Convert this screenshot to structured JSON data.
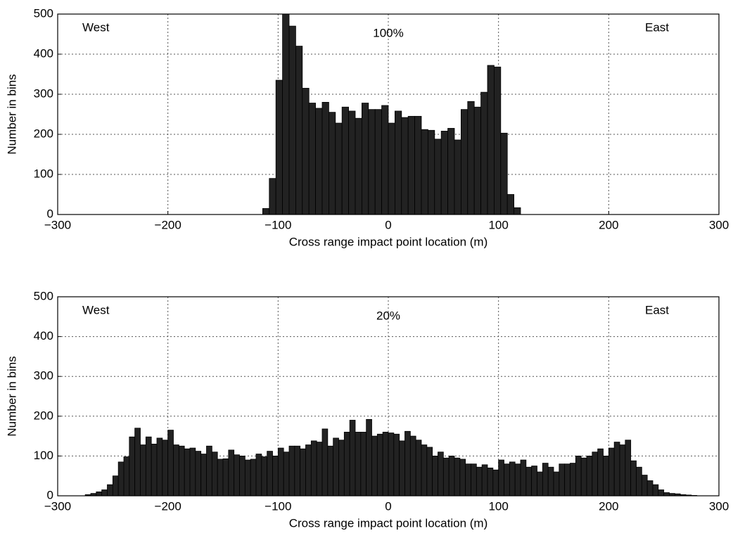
{
  "chart_data": [
    {
      "type": "histogram",
      "ylabel": "Number in bins",
      "xlabel": "Cross range impact point location (m)",
      "annotations": [
        "West",
        "100%",
        "East"
      ],
      "color": "#222222",
      "grid": true,
      "xlim": [
        -300,
        300
      ],
      "ylim": [
        0,
        500
      ],
      "xticks": [
        {
          "value": -300,
          "label": "−300"
        },
        {
          "value": -200,
          "label": "−200"
        },
        {
          "value": -100,
          "label": "−100"
        },
        0,
        100,
        200,
        300
      ],
      "yticks": [
        0,
        100,
        200,
        300,
        400,
        500
      ],
      "bins": [
        -114,
        -108,
        -102,
        -96,
        -90,
        -84,
        -78,
        -72,
        -66,
        -60,
        -54,
        -48,
        -42,
        -36,
        -30,
        -24,
        -18,
        -12,
        -6,
        0,
        6,
        12,
        18,
        24,
        30,
        36,
        42,
        48,
        54,
        60,
        66,
        72,
        78,
        84,
        90,
        96,
        102,
        108,
        114,
        120
      ],
      "values": [
        15,
        90,
        335,
        500,
        470,
        420,
        315,
        278,
        265,
        280,
        255,
        228,
        268,
        258,
        240,
        278,
        262,
        262,
        272,
        228,
        258,
        242,
        245,
        245,
        212,
        210,
        188,
        208,
        215,
        186,
        262,
        282,
        268,
        305,
        372,
        368,
        203,
        50,
        17
      ]
    },
    {
      "type": "histogram",
      "ylabel": "Number in bins",
      "xlabel": "Cross range impact point location (m)",
      "annotations": [
        "West",
        "20%",
        "East"
      ],
      "color": "#222222",
      "grid": true,
      "xlim": [
        -300,
        300
      ],
      "ylim": [
        0,
        500
      ],
      "xticks": [
        {
          "value": -300,
          "label": "−300"
        },
        {
          "value": -200,
          "label": "−200"
        },
        {
          "value": -100,
          "label": "−100"
        },
        0,
        100,
        200,
        300
      ],
      "yticks": [
        0,
        100,
        200,
        300,
        400,
        500
      ],
      "bins": [
        -275,
        -270,
        -265,
        -260,
        -255,
        -250,
        -245,
        -240,
        -235,
        -230,
        -225,
        -220,
        -215,
        -210,
        -205,
        -200,
        -195,
        -190,
        -185,
        -180,
        -175,
        -170,
        -165,
        -160,
        -155,
        -150,
        -145,
        -140,
        -135,
        -130,
        -125,
        -120,
        -115,
        -110,
        -105,
        -100,
        -95,
        -90,
        -85,
        -80,
        -75,
        -70,
        -65,
        -60,
        -55,
        -50,
        -45,
        -40,
        -35,
        -30,
        -25,
        -20,
        -15,
        -10,
        -5,
        0,
        5,
        10,
        15,
        20,
        25,
        30,
        35,
        40,
        45,
        50,
        55,
        60,
        65,
        70,
        75,
        80,
        85,
        90,
        95,
        100,
        105,
        110,
        115,
        120,
        125,
        130,
        135,
        140,
        145,
        150,
        155,
        160,
        165,
        170,
        175,
        180,
        185,
        190,
        195,
        200,
        205,
        210,
        215,
        220,
        225,
        230,
        235,
        240,
        245,
        250,
        255,
        260,
        265,
        270,
        275,
        280
      ],
      "values": [
        3,
        6,
        10,
        15,
        28,
        50,
        85,
        98,
        148,
        170,
        128,
        148,
        130,
        145,
        140,
        165,
        128,
        125,
        118,
        120,
        112,
        105,
        125,
        110,
        92,
        93,
        115,
        103,
        100,
        90,
        92,
        105,
        98,
        112,
        100,
        120,
        110,
        125,
        125,
        118,
        128,
        138,
        135,
        168,
        125,
        145,
        140,
        160,
        190,
        160,
        160,
        192,
        150,
        155,
        160,
        158,
        155,
        138,
        162,
        150,
        140,
        128,
        122,
        100,
        110,
        95,
        100,
        95,
        92,
        80,
        80,
        72,
        78,
        70,
        65,
        90,
        80,
        85,
        80,
        90,
        72,
        75,
        60,
        82,
        72,
        60,
        80,
        80,
        82,
        100,
        95,
        100,
        110,
        118,
        100,
        120,
        135,
        128,
        140,
        88,
        72,
        52,
        38,
        28,
        15,
        8,
        6,
        5,
        3,
        2,
        1
      ]
    }
  ]
}
